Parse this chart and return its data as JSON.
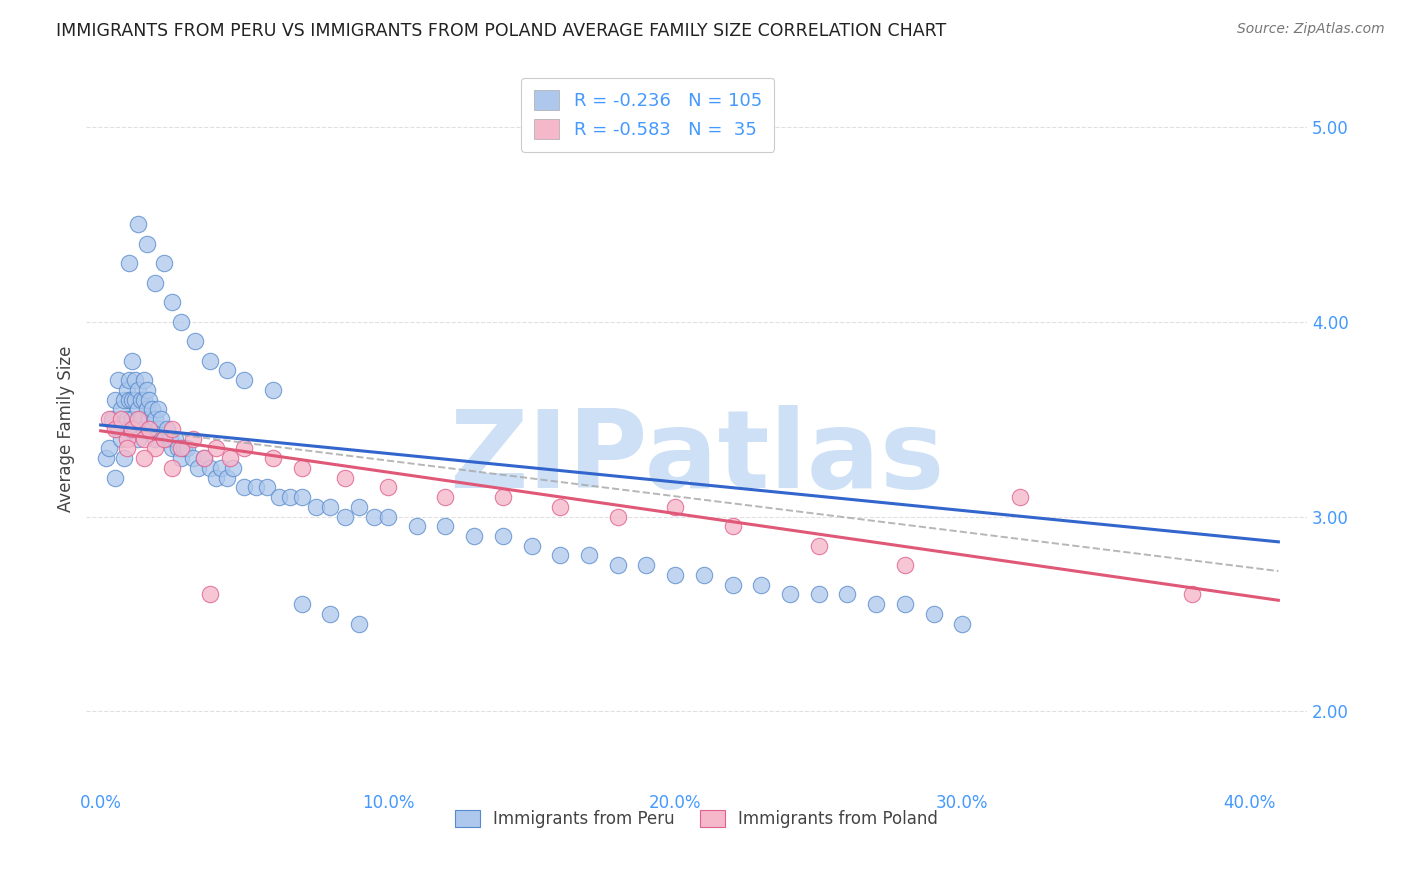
{
  "title": "IMMIGRANTS FROM PERU VS IMMIGRANTS FROM POLAND AVERAGE FAMILY SIZE CORRELATION CHART",
  "source": "Source: ZipAtlas.com",
  "xlabel_ticks": [
    "0.0%",
    "10.0%",
    "20.0%",
    "30.0%",
    "40.0%"
  ],
  "xlabel_tick_vals": [
    0.0,
    0.1,
    0.2,
    0.3,
    0.4
  ],
  "ylabel": "Average Family Size",
  "ylabel_right_ticks": [
    2.0,
    3.0,
    4.0,
    5.0
  ],
  "xlim": [
    -0.005,
    0.42
  ],
  "ylim": [
    1.6,
    5.3
  ],
  "peru_color": "#adc8ec",
  "peru_edge_color": "#5588cc",
  "poland_color": "#f5b8cb",
  "poland_edge_color": "#e06090",
  "peru_R": -0.236,
  "peru_N": 105,
  "poland_R": -0.583,
  "poland_N": 35,
  "trend_peru_color": "#3366cc",
  "trend_poland_color": "#e05878",
  "background_color": "#ffffff",
  "grid_color": "#e0e0e0",
  "title_color": "#222222",
  "axis_color": "#4499ff",
  "watermark_text": "ZIPatlas",
  "watermark_color": "#cde0f5",
  "legend_label_peru": "Immigrants from Peru",
  "legend_label_poland": "Immigrants from Poland",
  "peru_x": [
    0.002,
    0.003,
    0.004,
    0.005,
    0.005,
    0.006,
    0.006,
    0.007,
    0.007,
    0.008,
    0.008,
    0.009,
    0.009,
    0.01,
    0.01,
    0.01,
    0.011,
    0.011,
    0.011,
    0.012,
    0.012,
    0.012,
    0.013,
    0.013,
    0.013,
    0.014,
    0.014,
    0.015,
    0.015,
    0.015,
    0.016,
    0.016,
    0.017,
    0.017,
    0.018,
    0.018,
    0.019,
    0.019,
    0.02,
    0.02,
    0.021,
    0.022,
    0.023,
    0.024,
    0.025,
    0.026,
    0.027,
    0.028,
    0.029,
    0.03,
    0.032,
    0.034,
    0.036,
    0.038,
    0.04,
    0.042,
    0.044,
    0.046,
    0.05,
    0.054,
    0.058,
    0.062,
    0.066,
    0.07,
    0.075,
    0.08,
    0.085,
    0.09,
    0.095,
    0.1,
    0.11,
    0.12,
    0.13,
    0.14,
    0.15,
    0.16,
    0.17,
    0.18,
    0.19,
    0.2,
    0.21,
    0.22,
    0.23,
    0.24,
    0.25,
    0.26,
    0.27,
    0.28,
    0.29,
    0.3,
    0.01,
    0.013,
    0.016,
    0.019,
    0.022,
    0.025,
    0.028,
    0.033,
    0.038,
    0.044,
    0.05,
    0.06,
    0.07,
    0.08,
    0.09
  ],
  "peru_y": [
    3.3,
    3.35,
    3.5,
    3.2,
    3.6,
    3.45,
    3.7,
    3.4,
    3.55,
    3.6,
    3.3,
    3.5,
    3.65,
    3.45,
    3.6,
    3.7,
    3.5,
    3.6,
    3.8,
    3.45,
    3.6,
    3.7,
    3.4,
    3.55,
    3.65,
    3.5,
    3.6,
    3.45,
    3.6,
    3.7,
    3.55,
    3.65,
    3.5,
    3.6,
    3.45,
    3.55,
    3.4,
    3.5,
    3.45,
    3.55,
    3.5,
    3.4,
    3.45,
    3.4,
    3.35,
    3.4,
    3.35,
    3.3,
    3.35,
    3.35,
    3.3,
    3.25,
    3.3,
    3.25,
    3.2,
    3.25,
    3.2,
    3.25,
    3.15,
    3.15,
    3.15,
    3.1,
    3.1,
    3.1,
    3.05,
    3.05,
    3.0,
    3.05,
    3.0,
    3.0,
    2.95,
    2.95,
    2.9,
    2.9,
    2.85,
    2.8,
    2.8,
    2.75,
    2.75,
    2.7,
    2.7,
    2.65,
    2.65,
    2.6,
    2.6,
    2.6,
    2.55,
    2.55,
    2.5,
    2.45,
    4.3,
    4.5,
    4.4,
    4.2,
    4.3,
    4.1,
    4.0,
    3.9,
    3.8,
    3.75,
    3.7,
    3.65,
    2.55,
    2.5,
    2.45
  ],
  "poland_x": [
    0.003,
    0.005,
    0.007,
    0.009,
    0.011,
    0.013,
    0.015,
    0.017,
    0.019,
    0.022,
    0.025,
    0.028,
    0.032,
    0.036,
    0.04,
    0.045,
    0.05,
    0.06,
    0.07,
    0.085,
    0.1,
    0.12,
    0.14,
    0.16,
    0.18,
    0.2,
    0.22,
    0.25,
    0.28,
    0.32,
    0.009,
    0.015,
    0.025,
    0.038,
    0.38
  ],
  "poland_y": [
    3.5,
    3.45,
    3.5,
    3.4,
    3.45,
    3.5,
    3.4,
    3.45,
    3.35,
    3.4,
    3.45,
    3.35,
    3.4,
    3.3,
    3.35,
    3.3,
    3.35,
    3.3,
    3.25,
    3.2,
    3.15,
    3.1,
    3.1,
    3.05,
    3.0,
    3.05,
    2.95,
    2.85,
    2.75,
    3.1,
    3.35,
    3.3,
    3.25,
    2.6,
    2.6
  ],
  "peru_trend_x0": 0.0,
  "peru_trend_y0": 3.47,
  "peru_trend_x1": 0.41,
  "peru_trend_y1": 2.87,
  "poland_trend_x0": 0.0,
  "poland_trend_y0": 3.44,
  "poland_trend_x1": 0.41,
  "poland_trend_y1": 2.57
}
